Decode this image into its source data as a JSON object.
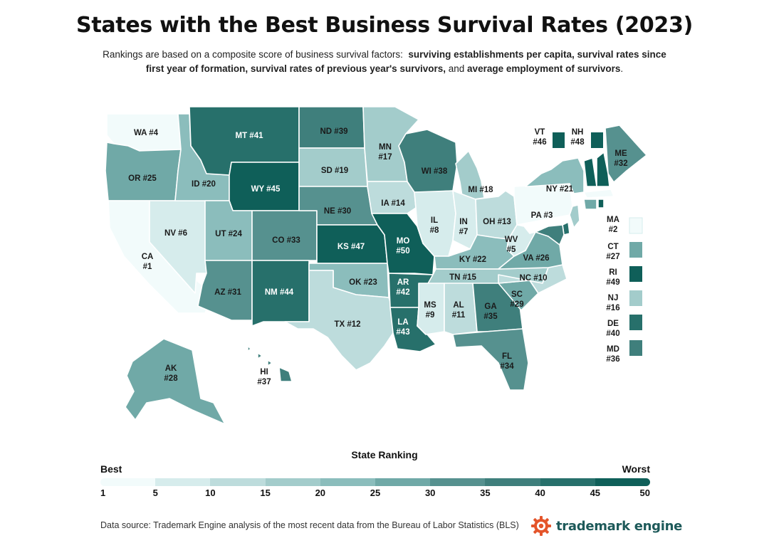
{
  "title": "States with the Best Business Survival Rates (2023)",
  "subtitle": {
    "intro": "Rankings are based on a composite score of business survival factors:",
    "factor1": "surviving establishments per capita, survival rates since first year of formation,",
    "factor2": "survival rates of previous year's survivors,",
    "and": "and",
    "factor3": "average employment of survivors",
    "end": "."
  },
  "colors": {
    "scale": [
      "#f2fbfb",
      "#d6ecec",
      "#bddcdc",
      "#a3cccb",
      "#8bbdbc",
      "#70a9a7",
      "#56918f",
      "#3f7f7c",
      "#27706b",
      "#0f5f59"
    ],
    "label_dark_threshold": 41
  },
  "map": {
    "states": [
      {
        "code": "WA",
        "rank": 4,
        "label": "WA #4"
      },
      {
        "code": "OR",
        "rank": 25,
        "label": "OR #25"
      },
      {
        "code": "CA",
        "rank": 1,
        "label": "CA #1"
      },
      {
        "code": "NV",
        "rank": 6,
        "label": "NV #6"
      },
      {
        "code": "ID",
        "rank": 20,
        "label": "ID #20"
      },
      {
        "code": "MT",
        "rank": 41,
        "label": "MT #41"
      },
      {
        "code": "WY",
        "rank": 45,
        "label": "WY #45"
      },
      {
        "code": "UT",
        "rank": 24,
        "label": "UT #24"
      },
      {
        "code": "AZ",
        "rank": 31,
        "label": "AZ #31"
      },
      {
        "code": "CO",
        "rank": 33,
        "label": "CO #33"
      },
      {
        "code": "NM",
        "rank": 44,
        "label": "NM #44"
      },
      {
        "code": "ND",
        "rank": 39,
        "label": "ND #39"
      },
      {
        "code": "SD",
        "rank": 19,
        "label": "SD #19"
      },
      {
        "code": "NE",
        "rank": 30,
        "label": "NE #30"
      },
      {
        "code": "KS",
        "rank": 47,
        "label": "KS #47"
      },
      {
        "code": "OK",
        "rank": 23,
        "label": "OK #23"
      },
      {
        "code": "TX",
        "rank": 12,
        "label": "TX #12"
      },
      {
        "code": "MN",
        "rank": 17,
        "label": "MN #17"
      },
      {
        "code": "IA",
        "rank": 14,
        "label": "IA #14"
      },
      {
        "code": "MO",
        "rank": 50,
        "label": "MO #50"
      },
      {
        "code": "AR",
        "rank": 42,
        "label": "AR #42"
      },
      {
        "code": "LA",
        "rank": 43,
        "label": "LA #43"
      },
      {
        "code": "WI",
        "rank": 38,
        "label": "WI #38"
      },
      {
        "code": "IL",
        "rank": 8,
        "label": "IL #8"
      },
      {
        "code": "MI",
        "rank": 18,
        "label": "MI #18"
      },
      {
        "code": "IN",
        "rank": 7,
        "label": "IN #7"
      },
      {
        "code": "OH",
        "rank": 13,
        "label": "OH #13"
      },
      {
        "code": "KY",
        "rank": 22,
        "label": "KY #22"
      },
      {
        "code": "TN",
        "rank": 15,
        "label": "TN #15"
      },
      {
        "code": "MS",
        "rank": 9,
        "label": "MS #9"
      },
      {
        "code": "AL",
        "rank": 11,
        "label": "AL #11"
      },
      {
        "code": "GA",
        "rank": 35,
        "label": "GA #35"
      },
      {
        "code": "FL",
        "rank": 34,
        "label": "FL #34"
      },
      {
        "code": "SC",
        "rank": 29,
        "label": "SC #29"
      },
      {
        "code": "NC",
        "rank": 10,
        "label": "NC #10"
      },
      {
        "code": "VA",
        "rank": 26,
        "label": "VA #26"
      },
      {
        "code": "WV",
        "rank": 5,
        "label": "WV #5"
      },
      {
        "code": "PA",
        "rank": 3,
        "label": "PA #3"
      },
      {
        "code": "NY",
        "rank": 21,
        "label": "NY #21"
      },
      {
        "code": "ME",
        "rank": 32,
        "label": "ME #32"
      },
      {
        "code": "AK",
        "rank": 28,
        "label": "AK #28"
      },
      {
        "code": "HI",
        "rank": 37,
        "label": "HI #37"
      }
    ],
    "northeast_inset": [
      {
        "code": "VT",
        "rank": 46,
        "label": "VT #46"
      },
      {
        "code": "NH",
        "rank": 48,
        "label": "NH #48"
      }
    ],
    "side_legend": [
      {
        "code": "MA",
        "rank": 2,
        "label": "MA #2"
      },
      {
        "code": "CT",
        "rank": 27,
        "label": "CT #27"
      },
      {
        "code": "RI",
        "rank": 49,
        "label": "RI #49"
      },
      {
        "code": "NJ",
        "rank": 16,
        "label": "NJ #16"
      },
      {
        "code": "DE",
        "rank": 40,
        "label": "DE #40"
      },
      {
        "code": "MD",
        "rank": 36,
        "label": "MD #36"
      }
    ]
  },
  "legend": {
    "title": "State Ranking",
    "best": "Best",
    "worst": "Worst",
    "ticks": [
      "1",
      "5",
      "10",
      "15",
      "20",
      "25",
      "30",
      "35",
      "40",
      "45",
      "50"
    ]
  },
  "source": "Data source: Trademark Engine analysis of the most recent data from the Bureau of Labor Statistics (BLS)",
  "brand": {
    "name": "trademark engine",
    "logo_icon": "gear-icon"
  }
}
